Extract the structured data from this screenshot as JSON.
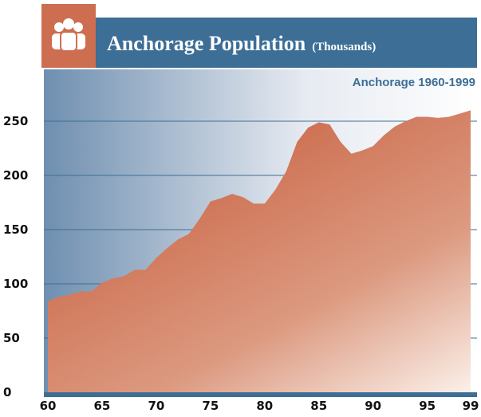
{
  "chart_data": {
    "type": "area",
    "title": "Anchorage Population",
    "title_unit": "(Thousands)",
    "subtitle": "Anchorage  1960-1999",
    "x": [
      60,
      61,
      62,
      63,
      64,
      65,
      66,
      67,
      68,
      69,
      70,
      71,
      72,
      73,
      74,
      75,
      76,
      77,
      78,
      79,
      80,
      81,
      82,
      83,
      84,
      85,
      86,
      87,
      88,
      89,
      90,
      91,
      92,
      93,
      94,
      95,
      96,
      97,
      98,
      99
    ],
    "values": [
      84,
      88,
      90,
      93,
      93,
      101,
      105,
      107,
      113,
      113,
      124,
      133,
      141,
      146,
      160,
      176,
      179,
      183,
      180,
      174,
      174,
      187,
      204,
      231,
      244,
      249,
      247,
      231,
      220,
      223,
      227,
      237,
      245,
      250,
      254,
      254,
      253,
      254,
      257,
      260
    ],
    "color": "#cd6e50",
    "xlim": [
      60,
      99
    ],
    "xticks": [
      60,
      65,
      70,
      75,
      80,
      85,
      90,
      95,
      99
    ],
    "ylim": [
      0,
      250
    ],
    "yticks": [
      0,
      50,
      100,
      150,
      200,
      250
    ],
    "grid": true
  }
}
